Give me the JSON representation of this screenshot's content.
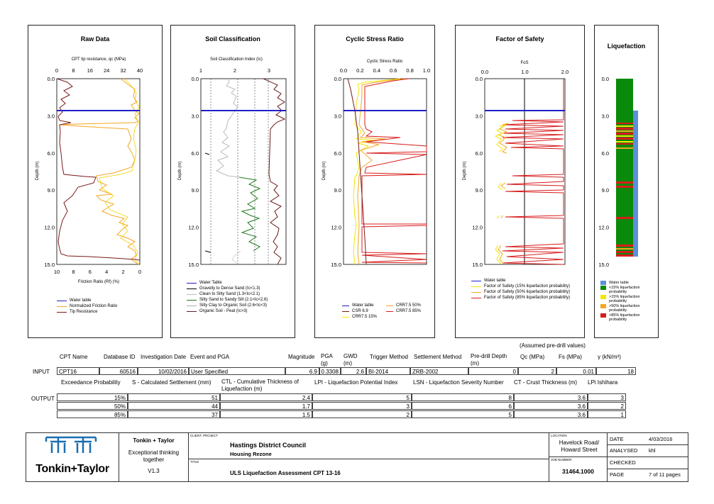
{
  "panels": {
    "raw": {
      "title": "Raw Data",
      "top_axis_label": "CPT tip resistance, qc (MPa)",
      "top_ticks": [
        "0",
        "8",
        "16",
        "24",
        "32",
        "40"
      ],
      "bottom_ticks": [
        "10",
        "8",
        "6",
        "4",
        "2",
        "0"
      ],
      "bottom_axis_label": "Friction Ratio (Rf) (%)",
      "legend": [
        "Water table",
        "Normalized Friction Ratio",
        "Tip Resistance"
      ]
    },
    "soil": {
      "title": "Soil Classification",
      "top_axis_label": "Soil Classification Index (Ic)",
      "top_ticks": [
        "1",
        "2",
        "3"
      ],
      "legend": [
        "Water Table",
        "Gravelly to Dense Sand (Ic<1.3)",
        "Clean to Silty Sand (1.3<Ic<2.1)",
        "Silty Sand to Sandy Silt (2.1<Ic<2.6)",
        "Silty Clay to Organic Soil (2.6<Ic<3)",
        "Organic Soil - Peat (Ic>3)"
      ]
    },
    "csr": {
      "title": "Cyclic Stress Ratio",
      "top_axis_label": "Cyclic Stress Ratio",
      "top_ticks": [
        "0.0",
        "0.2",
        "0.4",
        "0.6",
        "0.8",
        "1.0"
      ],
      "legend": [
        "Water table",
        "CSR 6.9",
        "CRR7.5 15%",
        "CRR7.5 50%",
        "CRR7.5 85%"
      ]
    },
    "fos": {
      "title": "Factor of Safety",
      "top_axis_label": "FoS",
      "top_ticks": [
        "0.0",
        "1.0",
        "2.0"
      ],
      "legend": [
        "Water table",
        "Factor of Safety (15% liquefaction probability)",
        "Factor of Safety (50% liquefaction probability)",
        "Factor of Safety (85% liquefaction probability)"
      ]
    },
    "liq": {
      "title": "Liquefaction",
      "legend": [
        "Water table",
        "<15% liquefaction probability",
        ">15% liquefaction probability",
        ">50% liquefaction probability",
        ">85% liquefaction probability"
      ]
    },
    "depth_ticks": [
      "0.0",
      "3.0",
      "6.0",
      "9.0",
      "12.0",
      "15.0"
    ],
    "depth_label": "Depth (m)"
  },
  "colors": {
    "water": "#1f1fc8",
    "tip": "#7a1a1a",
    "friction": "#f5a623",
    "yellow": "#f2e600",
    "orange": "#f5a623",
    "red": "#d81c1c",
    "green": "#1f7a1f",
    "liq_green": "#0a8a0a",
    "liq_blue": "#5b8fd9"
  },
  "input": {
    "headers": {
      "cpt_name": "CPT Name",
      "database_id": "Database ID",
      "investigation_date": "Investigation Date",
      "event": "Event and PGA",
      "magnitude": "Magnitude",
      "pga": "PGA (g)",
      "gwd": "GWD (m)",
      "trigger": "Trigger Method",
      "settlement": "Settlement Method",
      "predrill": "Pre-drill Depth (m)",
      "assumed": "(Assumed pre-drill values)",
      "qc": "Qc (MPa)",
      "fs": "Fs (MPa)",
      "gamma": "γ (kN/m³)"
    },
    "label": "INPUT",
    "row": {
      "cpt_name": "CPT16",
      "database_id": "60516",
      "investigation_date": "10/02/2016",
      "event": "User Specified",
      "magnitude": "6.9",
      "pga": "0.3308",
      "gwd": "2.6",
      "trigger": "BI-2014",
      "settlement": "ZRB-2002",
      "predrill": "0",
      "qc": "2",
      "fs": "0.01",
      "gamma": "18"
    }
  },
  "output": {
    "label": "OUTPUT",
    "headers": {
      "exceedance": "Exceedance Probability",
      "s": "S - Calculated Settlement (mm)",
      "ctl": "CTL - Cumulative Thickness of Liquefaction (m)",
      "lpi": "LPI - Liquefaction Potential Index",
      "lsn": "LSN - Liquefaction Severity Number",
      "ct": "CT - Crust Thickness (m)",
      "ishihara": "LPi Ishihara"
    },
    "rows": [
      {
        "p": "15%",
        "s": "51",
        "ctl": "2.4",
        "lpi": "5",
        "lsn": "8",
        "ct": "3.6",
        "ish": "3"
      },
      {
        "p": "50%",
        "s": "44",
        "ctl": "1.7",
        "lpi": "3",
        "lsn": "6",
        "ct": "3.6",
        "ish": "2"
      },
      {
        "p": "85%",
        "s": "37",
        "ctl": "1.5",
        "lpi": "2",
        "lsn": "5",
        "ct": "3.6",
        "ish": "1"
      }
    ]
  },
  "title_block": {
    "logo_text": "Tonkin+Taylor",
    "company": "Tonkin + Taylor",
    "tagline": "Exceptional thinking together",
    "version": "V1.3",
    "client_label": "CLIENT, PROJECT",
    "client": "Hastings District Council",
    "project": "Housing Rezone",
    "title_label": "TITLE",
    "title": "ULS Liquefaction Assessment CPT 13-16",
    "location_label": "LOCATION",
    "location": "Havelock Road/ Howard Street",
    "job_label": "JOB NUMBER",
    "job": "31464.1000",
    "date_label": "DATE",
    "date": "4/03/2016",
    "analysed_label": "ANALYSED",
    "analysed": "khl",
    "checked_label": "CHECKED",
    "checked": "",
    "page_label": "PAGE",
    "page": "7 of 11 pages"
  }
}
